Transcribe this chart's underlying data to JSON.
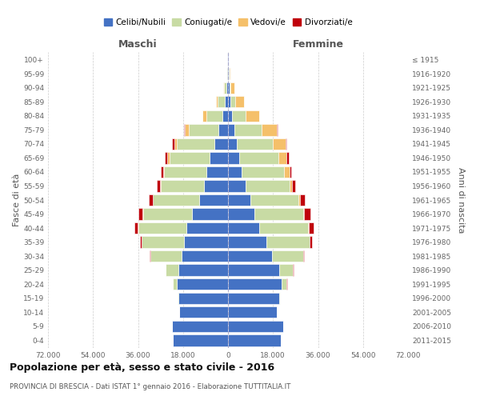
{
  "age_groups": [
    "0-4",
    "5-9",
    "10-14",
    "15-19",
    "20-24",
    "25-29",
    "30-34",
    "35-39",
    "40-44",
    "45-49",
    "50-54",
    "55-59",
    "60-64",
    "65-69",
    "70-74",
    "75-79",
    "80-84",
    "85-89",
    "90-94",
    "95-99",
    "100+"
  ],
  "birth_years": [
    "2011-2015",
    "2006-2010",
    "2001-2005",
    "1996-2000",
    "1991-1995",
    "1986-1990",
    "1981-1985",
    "1976-1980",
    "1971-1975",
    "1966-1970",
    "1961-1965",
    "1956-1960",
    "1951-1955",
    "1946-1950",
    "1941-1945",
    "1936-1940",
    "1931-1935",
    "1926-1930",
    "1921-1925",
    "1916-1920",
    "≤ 1915"
  ],
  "colors": {
    "celibi": "#4472c4",
    "coniugati": "#c8dba4",
    "vedovi": "#f5c06a",
    "divorziati": "#c0000b"
  },
  "maschi": {
    "celibi": [
      22000,
      22500,
      19500,
      20000,
      20500,
      20000,
      18500,
      17500,
      16500,
      14500,
      11500,
      9500,
      8500,
      7500,
      5500,
      3800,
      2200,
      1200,
      700,
      400,
      200
    ],
    "coniugati": [
      0,
      0,
      100,
      300,
      1500,
      5000,
      12500,
      17000,
      19500,
      19500,
      18500,
      17500,
      17000,
      16000,
      15000,
      12000,
      6500,
      3000,
      800,
      200,
      100
    ],
    "vedovi": [
      0,
      0,
      0,
      0,
      0,
      0,
      50,
      50,
      100,
      100,
      200,
      300,
      400,
      700,
      1000,
      1500,
      1500,
      700,
      300,
      100,
      50
    ],
    "divorziati": [
      0,
      0,
      0,
      0,
      50,
      100,
      300,
      800,
      1500,
      1700,
      1500,
      1200,
      1100,
      1000,
      800,
      300,
      100,
      0,
      0,
      0,
      0
    ]
  },
  "femmine": {
    "celibi": [
      21000,
      22000,
      19500,
      20500,
      21500,
      20500,
      17500,
      15500,
      12500,
      10500,
      9000,
      7000,
      5500,
      4500,
      3500,
      2500,
      1500,
      1000,
      600,
      400,
      200
    ],
    "coniugati": [
      0,
      0,
      150,
      400,
      2000,
      5500,
      12500,
      17000,
      19500,
      19500,
      19000,
      17500,
      17000,
      15500,
      14500,
      11000,
      5500,
      2000,
      500,
      100,
      50
    ],
    "vedovi": [
      0,
      0,
      0,
      0,
      0,
      0,
      50,
      100,
      250,
      400,
      700,
      1200,
      2000,
      3500,
      5000,
      6000,
      5500,
      3500,
      1500,
      400,
      150
    ],
    "divorziati": [
      0,
      0,
      0,
      0,
      50,
      100,
      400,
      1000,
      2000,
      2500,
      2000,
      1200,
      900,
      700,
      500,
      300,
      100,
      0,
      0,
      0,
      0
    ]
  },
  "xlim": 72000,
  "xtick_vals": [
    -72000,
    -54000,
    -36000,
    -18000,
    0,
    18000,
    36000,
    54000,
    72000
  ],
  "xtick_labels": [
    "72.000",
    "54.000",
    "36.000",
    "18.000",
    "0",
    "18.000",
    "36.000",
    "54.000",
    "72.000"
  ],
  "title": "Popolazione per età, sesso e stato civile - 2016",
  "subtitle": "PROVINCIA DI BRESCIA - Dati ISTAT 1° gennaio 2016 - Elaborazione TUTTITALIA.IT",
  "ylabel_left": "Fasce di età",
  "ylabel_right": "Anni di nascita",
  "legend_labels": [
    "Celibi/Nubili",
    "Coniugati/e",
    "Vedovi/e",
    "Divorziati/e"
  ],
  "maschi_label": "Maschi",
  "femmine_label": "Femmine"
}
